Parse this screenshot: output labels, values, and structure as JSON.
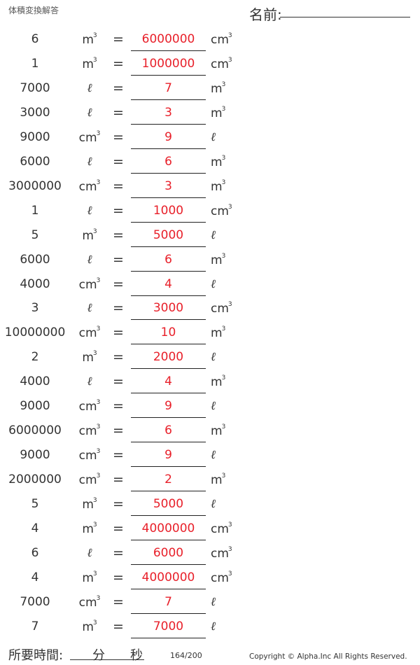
{
  "header": {
    "title": "体積変換解答",
    "name_label": "名前:"
  },
  "units": {
    "m3": "m",
    "cm3": "cm",
    "l": "ℓ",
    "cube": "3"
  },
  "rows": [
    {
      "value": "6",
      "from": "m3",
      "answer": "6000000",
      "to": "cm3"
    },
    {
      "value": "1",
      "from": "m3",
      "answer": "1000000",
      "to": "cm3"
    },
    {
      "value": "7000",
      "from": "l",
      "answer": "7",
      "to": "m3"
    },
    {
      "value": "3000",
      "from": "l",
      "answer": "3",
      "to": "m3"
    },
    {
      "value": "9000",
      "from": "cm3",
      "answer": "9",
      "to": "l"
    },
    {
      "value": "6000",
      "from": "l",
      "answer": "6",
      "to": "m3"
    },
    {
      "value": "3000000",
      "from": "cm3",
      "answer": "3",
      "to": "m3"
    },
    {
      "value": "1",
      "from": "l",
      "answer": "1000",
      "to": "cm3"
    },
    {
      "value": "5",
      "from": "m3",
      "answer": "5000",
      "to": "l"
    },
    {
      "value": "6000",
      "from": "l",
      "answer": "6",
      "to": "m3"
    },
    {
      "value": "4000",
      "from": "cm3",
      "answer": "4",
      "to": "l"
    },
    {
      "value": "3",
      "from": "l",
      "answer": "3000",
      "to": "cm3"
    },
    {
      "value": "10000000",
      "from": "cm3",
      "answer": "10",
      "to": "m3"
    },
    {
      "value": "2",
      "from": "m3",
      "answer": "2000",
      "to": "l"
    },
    {
      "value": "4000",
      "from": "l",
      "answer": "4",
      "to": "m3"
    },
    {
      "value": "9000",
      "from": "cm3",
      "answer": "9",
      "to": "l"
    },
    {
      "value": "6000000",
      "from": "cm3",
      "answer": "6",
      "to": "m3"
    },
    {
      "value": "9000",
      "from": "cm3",
      "answer": "9",
      "to": "l"
    },
    {
      "value": "2000000",
      "from": "cm3",
      "answer": "2",
      "to": "m3"
    },
    {
      "value": "5",
      "from": "m3",
      "answer": "5000",
      "to": "l"
    },
    {
      "value": "4",
      "from": "m3",
      "answer": "4000000",
      "to": "cm3"
    },
    {
      "value": "6",
      "from": "l",
      "answer": "6000",
      "to": "cm3"
    },
    {
      "value": "4",
      "from": "m3",
      "answer": "4000000",
      "to": "cm3"
    },
    {
      "value": "7000",
      "from": "cm3",
      "answer": "7",
      "to": "l"
    },
    {
      "value": "7",
      "from": "m3",
      "answer": "7000",
      "to": "l"
    }
  ],
  "equals": "=",
  "footer": {
    "time_label": "所要時間:",
    "minutes": "分",
    "seconds": "秒",
    "page": "164/200",
    "copyright": "Copyright © Alpha.Inc All Rights Reserved."
  },
  "colors": {
    "answer": "#e8202a"
  }
}
